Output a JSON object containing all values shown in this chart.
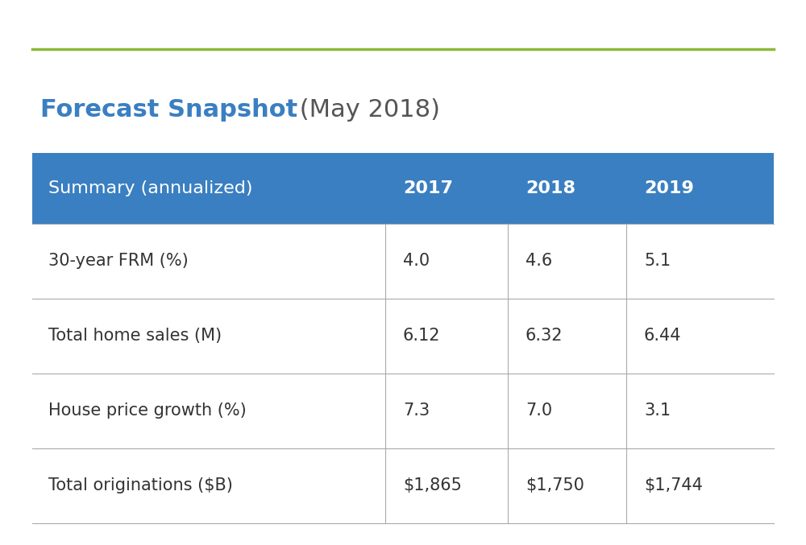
{
  "title_bold": "Forecast Snapshot",
  "title_regular": " (May 2018)",
  "title_bold_color": "#3a7fc1",
  "title_regular_color": "#555555",
  "title_fontsize": 22,
  "top_line_color": "#8db83a",
  "header_bg_color": "#3a7fc1",
  "header_text_color": "#ffffff",
  "header_labels": [
    "Summary (annualized)",
    "2017",
    "2018",
    "2019"
  ],
  "header_fontsize": 16,
  "row_labels": [
    "30-year FRM (%)",
    "Total home sales (M)",
    "House price growth (%)",
    "Total originations ($B)"
  ],
  "col_2017": [
    "4.0",
    "6.12",
    "7.3",
    "$1,865"
  ],
  "col_2018": [
    "4.6",
    "6.32",
    "7.0",
    "$1,750"
  ],
  "col_2019": [
    "5.1",
    "6.44",
    "3.1",
    "$1,744"
  ],
  "row_text_color": "#333333",
  "row_fontsize": 15,
  "divider_color": "#aaaaaa",
  "bg_color": "#ffffff"
}
